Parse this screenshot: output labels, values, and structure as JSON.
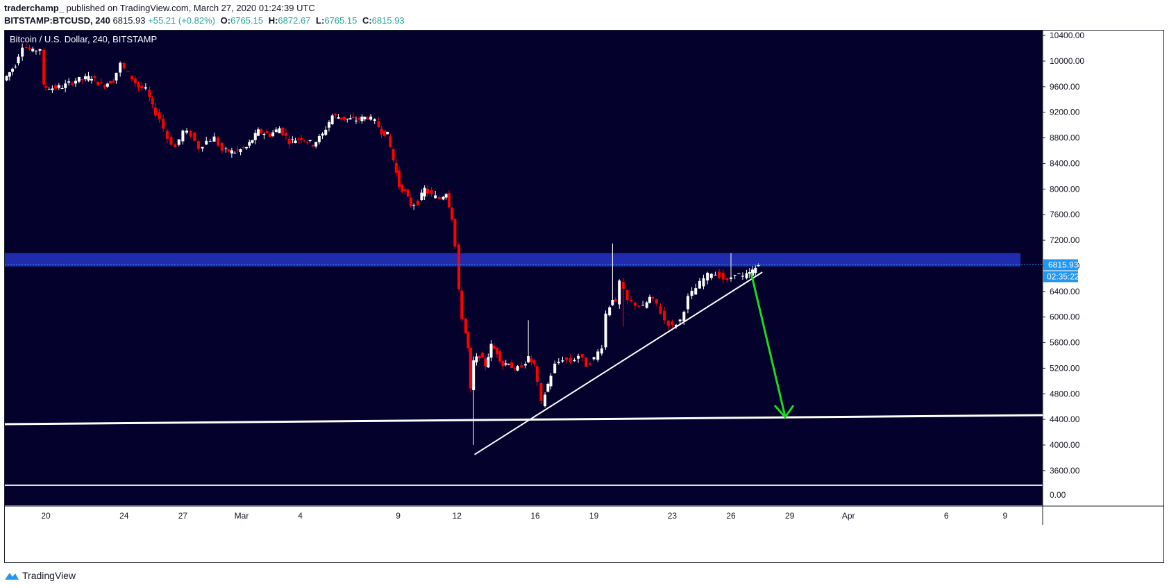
{
  "header": {
    "author": "traderchamp_",
    "published_text": "published on TradingView.com, March 27, 2020 01:24:39 UTC",
    "symbol": "BITSTAMP:BTCUSD, 240",
    "last": "6815.93",
    "change": "+55.21 (+0.82%)",
    "open_label": "O:",
    "open": "6765.15",
    "high_label": "H:",
    "high": "6872.67",
    "low_label": "L:",
    "low": "6765.15",
    "close_label": "C:",
    "close": "6815.93"
  },
  "footer": {
    "brand": "TradingView"
  },
  "colors": {
    "chart_bg": "#04012d",
    "up_candle": "#ffffff",
    "down_candle": "#ff0000",
    "zone": "#2a3bd8",
    "arrow": "#1cdb1c",
    "price_tag": "#2196f3",
    "up_text": "#26a69a"
  },
  "chart_data": {
    "type": "candlestick",
    "title": "Bitcoin / U.S. Dollar, 240, BITSTAMP",
    "ylim": [
      3400,
      10600
    ],
    "yticks": [
      "10400.00",
      "10000.00",
      "9600.00",
      "9200.00",
      "8800.00",
      "8400.00",
      "8000.00",
      "7600.00",
      "7200.00",
      "6800.00",
      "6400.00",
      "6000.00",
      "5600.00",
      "5200.00",
      "4800.00",
      "4400.00",
      "4000.00",
      "3600.00"
    ],
    "ytick_values": [
      10400,
      10000,
      9600,
      9200,
      8800,
      8400,
      8000,
      7600,
      7200,
      6800,
      6400,
      6000,
      5600,
      5200,
      4800,
      4400,
      4000,
      3600
    ],
    "sub_pane_tick": "0.00",
    "xticks": [
      {
        "label": "20",
        "day": 20
      },
      {
        "label": "24",
        "day": 24
      },
      {
        "label": "27",
        "day": 27
      },
      {
        "label": "Mar",
        "day": 30
      },
      {
        "label": "4",
        "day": 33
      },
      {
        "label": "9",
        "day": 38
      },
      {
        "label": "12",
        "day": 41
      },
      {
        "label": "16",
        "day": 45
      },
      {
        "label": "19",
        "day": 48
      },
      {
        "label": "23",
        "day": 52
      },
      {
        "label": "26",
        "day": 55
      },
      {
        "label": "29",
        "day": 58
      },
      {
        "label": "Apr",
        "day": 61
      },
      {
        "label": "6",
        "day": 66
      },
      {
        "label": "9",
        "day": 69
      }
    ],
    "last_price_label": "6815.93",
    "countdown_label": "02:35:22",
    "price_path": [
      {
        "day": 18.0,
        "price": 9700
      },
      {
        "day": 18.6,
        "price": 9950
      },
      {
        "day": 19.0,
        "price": 10250
      },
      {
        "day": 19.5,
        "price": 10150
      },
      {
        "day": 19.9,
        "price": 10200
      },
      {
        "day": 20.0,
        "price": 9600
      },
      {
        "day": 20.5,
        "price": 9580
      },
      {
        "day": 21.0,
        "price": 9600
      },
      {
        "day": 21.7,
        "price": 9700
      },
      {
        "day": 22.5,
        "price": 9750
      },
      {
        "day": 23.0,
        "price": 9620
      },
      {
        "day": 23.6,
        "price": 9700
      },
      {
        "day": 24.0,
        "price": 9950
      },
      {
        "day": 24.4,
        "price": 9800
      },
      {
        "day": 24.9,
        "price": 9600
      },
      {
        "day": 25.3,
        "price": 9550
      },
      {
        "day": 25.6,
        "price": 9280
      },
      {
        "day": 26.0,
        "price": 9100
      },
      {
        "day": 26.4,
        "price": 8800
      },
      {
        "day": 26.8,
        "price": 8650
      },
      {
        "day": 27.2,
        "price": 8900
      },
      {
        "day": 27.6,
        "price": 8850
      },
      {
        "day": 28.0,
        "price": 8650
      },
      {
        "day": 28.4,
        "price": 8750
      },
      {
        "day": 28.8,
        "price": 8800
      },
      {
        "day": 29.2,
        "price": 8600
      },
      {
        "day": 29.8,
        "price": 8580
      },
      {
        "day": 30.4,
        "price": 8650
      },
      {
        "day": 31.0,
        "price": 8900
      },
      {
        "day": 31.6,
        "price": 8850
      },
      {
        "day": 32.1,
        "price": 8950
      },
      {
        "day": 32.6,
        "price": 8750
      },
      {
        "day": 33.2,
        "price": 8800
      },
      {
        "day": 33.8,
        "price": 8700
      },
      {
        "day": 34.3,
        "price": 8850
      },
      {
        "day": 34.8,
        "price": 9150
      },
      {
        "day": 35.4,
        "price": 9100
      },
      {
        "day": 36.0,
        "price": 9080
      },
      {
        "day": 36.6,
        "price": 9130
      },
      {
        "day": 37.0,
        "price": 9050
      },
      {
        "day": 37.3,
        "price": 8900
      },
      {
        "day": 37.6,
        "price": 8850
      },
      {
        "day": 37.9,
        "price": 8450
      },
      {
        "day": 38.2,
        "price": 8050
      },
      {
        "day": 38.5,
        "price": 7950
      },
      {
        "day": 38.8,
        "price": 7750
      },
      {
        "day": 39.2,
        "price": 7800
      },
      {
        "day": 39.5,
        "price": 8000
      },
      {
        "day": 39.9,
        "price": 7900
      },
      {
        "day": 40.3,
        "price": 7850
      },
      {
        "day": 40.6,
        "price": 7950
      },
      {
        "day": 40.9,
        "price": 7550
      },
      {
        "day": 41.1,
        "price": 7100
      },
      {
        "day": 41.25,
        "price": 6400
      },
      {
        "day": 41.45,
        "price": 6000
      },
      {
        "day": 41.7,
        "price": 5500
      },
      {
        "day": 41.85,
        "price": 4850
      },
      {
        "day": 42.0,
        "price": 5300
      },
      {
        "day": 42.3,
        "price": 5400
      },
      {
        "day": 42.6,
        "price": 5250
      },
      {
        "day": 42.9,
        "price": 5550
      },
      {
        "day": 43.2,
        "price": 5450
      },
      {
        "day": 43.5,
        "price": 5250
      },
      {
        "day": 43.8,
        "price": 5300
      },
      {
        "day": 44.1,
        "price": 5150
      },
      {
        "day": 44.5,
        "price": 5250
      },
      {
        "day": 44.8,
        "price": 5350
      },
      {
        "day": 45.1,
        "price": 5250
      },
      {
        "day": 45.3,
        "price": 4950
      },
      {
        "day": 45.5,
        "price": 4650
      },
      {
        "day": 45.8,
        "price": 4950
      },
      {
        "day": 46.2,
        "price": 5250
      },
      {
        "day": 46.6,
        "price": 5350
      },
      {
        "day": 47.0,
        "price": 5300
      },
      {
        "day": 47.4,
        "price": 5400
      },
      {
        "day": 47.8,
        "price": 5250
      },
      {
        "day": 48.2,
        "price": 5350
      },
      {
        "day": 48.6,
        "price": 5550
      },
      {
        "day": 48.8,
        "price": 6050
      },
      {
        "day": 49.1,
        "price": 6300
      },
      {
        "day": 49.3,
        "price": 6200
      },
      {
        "day": 49.5,
        "price": 6550
      },
      {
        "day": 49.9,
        "price": 6250
      },
      {
        "day": 50.3,
        "price": 6200
      },
      {
        "day": 50.7,
        "price": 6150
      },
      {
        "day": 51.0,
        "price": 6300
      },
      {
        "day": 51.4,
        "price": 6200
      },
      {
        "day": 51.8,
        "price": 5950
      },
      {
        "day": 52.2,
        "price": 5850
      },
      {
        "day": 52.6,
        "price": 5950
      },
      {
        "day": 53.0,
        "price": 6300
      },
      {
        "day": 53.4,
        "price": 6450
      },
      {
        "day": 53.8,
        "price": 6600
      },
      {
        "day": 54.2,
        "price": 6700
      },
      {
        "day": 54.6,
        "price": 6650
      },
      {
        "day": 55.0,
        "price": 6550
      },
      {
        "day": 55.4,
        "price": 6700
      },
      {
        "day": 55.8,
        "price": 6620
      },
      {
        "day": 56.1,
        "price": 6680
      },
      {
        "day": 56.4,
        "price": 6760
      },
      {
        "day": 56.6,
        "price": 6815
      }
    ]
  }
}
